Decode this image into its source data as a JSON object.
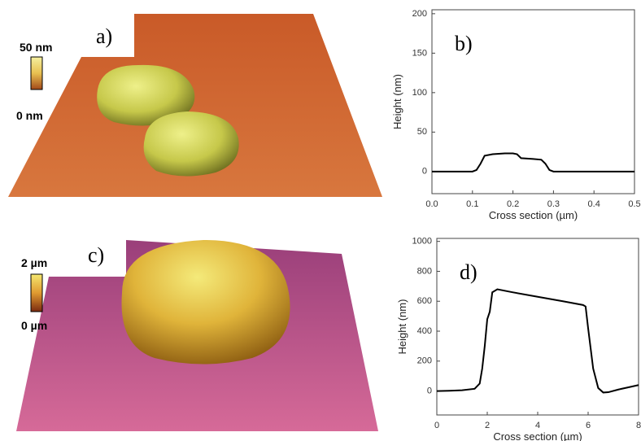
{
  "images": [
    {
      "label": "a)",
      "scale_top": "50 nm",
      "scale_bottom": "0 nm"
    },
    {
      "label": "c)",
      "scale_top": "2 µm",
      "scale_bottom": "0 µm"
    }
  ],
  "chart_data": [
    {
      "type": "line",
      "annotation": "b)",
      "xlabel": "Cross section (µm)",
      "ylabel": "Height (nm)",
      "x": [
        0,
        0.05,
        0.1,
        0.11,
        0.12,
        0.13,
        0.15,
        0.18,
        0.2,
        0.21,
        0.22,
        0.25,
        0.27,
        0.28,
        0.29,
        0.3,
        0.35,
        0.4,
        0.45,
        0.5
      ],
      "values": [
        0,
        0,
        0,
        2,
        10,
        20,
        22,
        23,
        23,
        22,
        17,
        16,
        15,
        10,
        2,
        0,
        0,
        0,
        0,
        0
      ],
      "color": "#000000",
      "xlim": [
        0,
        0.5
      ],
      "xticks": [
        {
          "value": 0,
          "label": "0.0"
        },
        0.1,
        0.2,
        0.3,
        0.4,
        0.5
      ],
      "ylim": [
        -28,
        205
      ],
      "yticks": [
        0,
        50,
        100,
        150,
        200
      ]
    },
    {
      "type": "line",
      "annotation": "d)",
      "xlabel": "Cross section (µm)",
      "ylabel": "Height (nm)",
      "x": [
        0,
        0.5,
        1,
        1.5,
        1.7,
        1.8,
        1.9,
        2.0,
        2.1,
        2.2,
        2.4,
        3,
        4,
        5,
        5.8,
        5.9,
        6.0,
        6.2,
        6.4,
        6.6,
        6.8,
        7.2,
        7.6,
        8
      ],
      "values": [
        0,
        2,
        5,
        15,
        50,
        150,
        300,
        480,
        530,
        660,
        680,
        660,
        630,
        600,
        575,
        565,
        420,
        150,
        20,
        -10,
        -8,
        10,
        25,
        40
      ],
      "color": "#000000",
      "xlim": [
        0,
        8
      ],
      "xticks": [
        0,
        2,
        4,
        6,
        8
      ],
      "ylim": [
        -160,
        1020
      ],
      "yticks": [
        0,
        200,
        400,
        600,
        800,
        1000
      ]
    }
  ]
}
